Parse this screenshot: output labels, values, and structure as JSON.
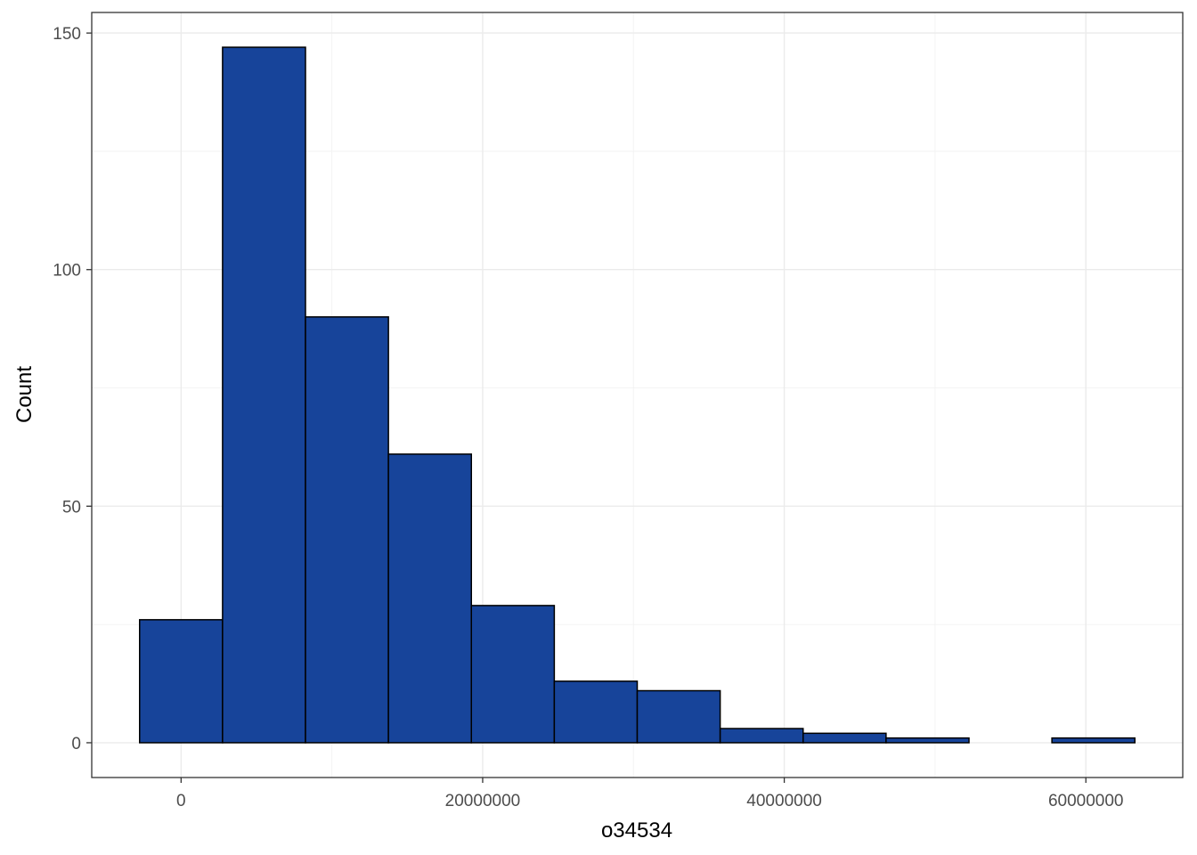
{
  "chart_data": {
    "type": "bar",
    "subtype": "histogram",
    "title": "",
    "xlabel": "o34534",
    "ylabel": "Count",
    "bin_width": 5500000,
    "bins": [
      {
        "start": -2750000,
        "end": 2750000,
        "count": 26
      },
      {
        "start": 2750000,
        "end": 8250000,
        "count": 147
      },
      {
        "start": 8250000,
        "end": 13750000,
        "count": 90
      },
      {
        "start": 13750000,
        "end": 19250000,
        "count": 61
      },
      {
        "start": 19250000,
        "end": 24750000,
        "count": 29
      },
      {
        "start": 24750000,
        "end": 30250000,
        "count": 13
      },
      {
        "start": 30250000,
        "end": 35750000,
        "count": 11
      },
      {
        "start": 35750000,
        "end": 41250000,
        "count": 3
      },
      {
        "start": 41250000,
        "end": 46750000,
        "count": 2
      },
      {
        "start": 46750000,
        "end": 52250000,
        "count": 1
      },
      {
        "start": 52250000,
        "end": 57750000,
        "count": 0
      },
      {
        "start": 57750000,
        "end": 63250000,
        "count": 1
      }
    ],
    "xlim": [
      -5925000,
      66425000
    ],
    "ylim": [
      -7.35,
      154.35
    ],
    "x_ticks": [
      0,
      20000000,
      40000000,
      60000000
    ],
    "x_tick_labels": [
      "0",
      "20000000",
      "40000000",
      "60000000"
    ],
    "x_minor_ticks": [
      10000000,
      30000000,
      50000000
    ],
    "y_ticks": [
      0,
      50,
      100,
      150
    ],
    "y_tick_labels": [
      "0",
      "50",
      "100",
      "150"
    ],
    "y_minor_ticks": [
      25,
      75,
      125
    ],
    "grid": true,
    "legend": "none",
    "fill_color": "#17449a",
    "border_color": "#000000"
  }
}
